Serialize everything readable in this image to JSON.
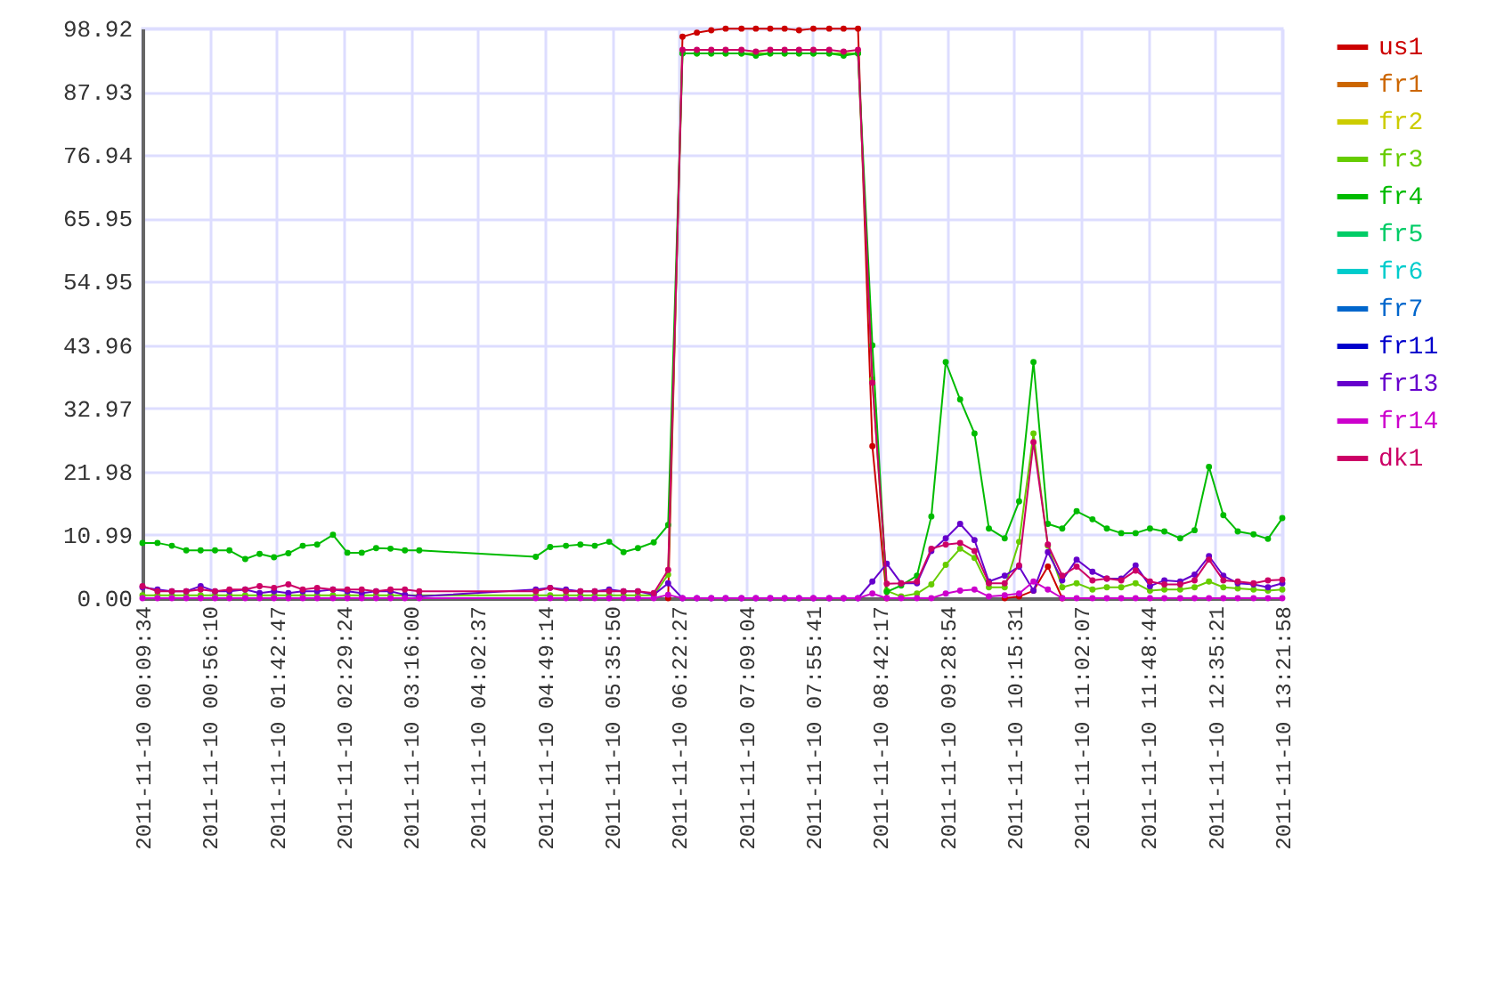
{
  "chart_data": {
    "type": "line",
    "marker": "circle",
    "grid": true,
    "legend": "top right",
    "x": [
      "2011-11-10T00:09:34",
      "2011-11-10T00:20",
      "2011-11-10T00:30",
      "2011-11-10T00:40",
      "2011-11-10T00:50",
      "2011-11-10T01:00",
      "2011-11-10T01:10",
      "2011-11-10T01:21",
      "2011-11-10T01:31",
      "2011-11-10T01:41",
      "2011-11-10T01:51",
      "2011-11-10T02:01",
      "2011-11-10T02:11",
      "2011-11-10T02:22",
      "2011-11-10T02:32",
      "2011-11-10T02:42",
      "2011-11-10T02:52",
      "2011-11-10T03:02",
      "2011-11-10T03:12",
      "2011-11-10T03:22",
      "2011-11-10T04:43",
      "2011-11-10T04:53",
      "2011-11-10T05:04",
      "2011-11-10T05:14",
      "2011-11-10T05:24",
      "2011-11-10T05:34",
      "2011-11-10T05:44",
      "2011-11-10T05:54",
      "2011-11-10T06:05",
      "2011-11-10T06:15",
      "2011-11-10T06:25",
      "2011-11-10T06:35",
      "2011-11-10T06:45",
      "2011-11-10T06:55",
      "2011-11-10T07:06",
      "2011-11-10T07:16",
      "2011-11-10T07:26",
      "2011-11-10T07:36",
      "2011-11-10T07:46",
      "2011-11-10T07:56",
      "2011-11-10T08:07",
      "2011-11-10T08:17",
      "2011-11-10T08:27",
      "2011-11-10T08:37",
      "2011-11-10T08:47",
      "2011-11-10T08:57",
      "2011-11-10T09:08",
      "2011-11-10T09:18",
      "2011-11-10T09:28",
      "2011-11-10T09:38",
      "2011-11-10T09:48",
      "2011-11-10T09:58",
      "2011-11-10T10:09",
      "2011-11-10T10:19",
      "2011-11-10T10:29",
      "2011-11-10T10:39",
      "2011-11-10T10:49",
      "2011-11-10T10:59",
      "2011-11-10T11:10",
      "2011-11-10T11:20",
      "2011-11-10T11:30",
      "2011-11-10T11:40",
      "2011-11-10T11:50",
      "2011-11-10T12:00",
      "2011-11-10T12:11",
      "2011-11-10T12:21",
      "2011-11-10T12:31",
      "2011-11-10T12:41",
      "2011-11-10T12:51",
      "2011-11-10T13:02",
      "2011-11-10T13:12",
      "2011-11-10T13:21:58"
    ],
    "xlim": [
      "2011-11-10T00:09:34",
      "2011-11-10T13:21:58"
    ],
    "xticks": [
      {
        "value": "2011-11-10T00:09:34",
        "label": "2011-11-10 00:09:34"
      },
      {
        "value": "2011-11-10T00:56:10",
        "label": "2011-11-10 00:56:10"
      },
      {
        "value": "2011-11-10T01:42:47",
        "label": "2011-11-10 01:42:47"
      },
      {
        "value": "2011-11-10T02:29:24",
        "label": "2011-11-10 02:29:24"
      },
      {
        "value": "2011-11-10T03:16:00",
        "label": "2011-11-10 03:16:00"
      },
      {
        "value": "2011-11-10T04:02:37",
        "label": "2011-11-10 04:02:37"
      },
      {
        "value": "2011-11-10T04:49:14",
        "label": "2011-11-10 04:49:14"
      },
      {
        "value": "2011-11-10T05:35:50",
        "label": "2011-11-10 05:35:50"
      },
      {
        "value": "2011-11-10T06:22:27",
        "label": "2011-11-10 06:22:27"
      },
      {
        "value": "2011-11-10T07:09:04",
        "label": "2011-11-10 07:09:04"
      },
      {
        "value": "2011-11-10T07:55:41",
        "label": "2011-11-10 07:55:41"
      },
      {
        "value": "2011-11-10T08:42:17",
        "label": "2011-11-10 08:42:17"
      },
      {
        "value": "2011-11-10T09:28:54",
        "label": "2011-11-10 09:28:54"
      },
      {
        "value": "2011-11-10T10:15:31",
        "label": "2011-11-10 10:15:31"
      },
      {
        "value": "2011-11-10T11:02:07",
        "label": "2011-11-10 11:02:07"
      },
      {
        "value": "2011-11-10T11:48:44",
        "label": "2011-11-10 11:48:44"
      },
      {
        "value": "2011-11-10T12:35:21",
        "label": "2011-11-10 12:35:21"
      },
      {
        "value": "2011-11-10T13:21:58",
        "label": "2011-11-10 13:21:58"
      }
    ],
    "ylim": [
      0,
      98.92
    ],
    "yticks": [
      {
        "value": 0,
        "label": "0.00"
      },
      10.99,
      21.98,
      32.97,
      43.96,
      54.95,
      65.95,
      76.94,
      87.93,
      98.92
    ],
    "series": [
      {
        "name": "us1",
        "color": "#cc0000",
        "values": [
          null,
          null,
          null,
          null,
          null,
          null,
          null,
          null,
          null,
          null,
          null,
          null,
          null,
          null,
          null,
          null,
          null,
          null,
          null,
          null,
          null,
          null,
          null,
          null,
          null,
          null,
          null,
          null,
          null,
          0,
          97.5,
          98.2,
          98.6,
          98.9,
          98.9,
          98.9,
          98.9,
          98.9,
          98.6,
          98.9,
          98.9,
          98.9,
          98.9,
          26.4,
          0,
          null,
          null,
          null,
          null,
          null,
          null,
          null,
          0,
          0.3,
          1.3,
          5.5,
          0,
          null,
          null,
          null,
          null,
          null,
          null,
          null,
          null,
          null,
          null,
          null,
          null,
          null,
          null,
          null
        ]
      },
      {
        "name": "fr1",
        "color": "#cc6600",
        "values": [
          null,
          null,
          null,
          null,
          null,
          null,
          null,
          null,
          null,
          null,
          null,
          null,
          null,
          null,
          null,
          null,
          null,
          null,
          null,
          null,
          null,
          null,
          null,
          null,
          null,
          null,
          null,
          null,
          null,
          null,
          null,
          null,
          null,
          null,
          null,
          null,
          null,
          null,
          null,
          null,
          null,
          null,
          null,
          null,
          null,
          null,
          null,
          null,
          null,
          null,
          null,
          null,
          null,
          null,
          null,
          null,
          null,
          null,
          null,
          null,
          null,
          null,
          null,
          null,
          null,
          null,
          null,
          null,
          null,
          null,
          null,
          null
        ]
      },
      {
        "name": "fr2",
        "color": "#cccc00",
        "values": [
          null,
          null,
          null,
          null,
          null,
          null,
          null,
          null,
          null,
          null,
          null,
          null,
          null,
          null,
          null,
          null,
          null,
          null,
          null,
          null,
          null,
          null,
          null,
          null,
          null,
          null,
          null,
          null,
          null,
          null,
          null,
          null,
          null,
          null,
          null,
          null,
          null,
          null,
          null,
          null,
          null,
          null,
          null,
          null,
          null,
          null,
          null,
          null,
          null,
          null,
          null,
          null,
          null,
          null,
          null,
          null,
          null,
          null,
          null,
          null,
          null,
          null,
          null,
          null,
          null,
          null,
          null,
          null,
          null,
          null,
          null,
          null
        ]
      },
      {
        "name": "fr3",
        "color": "#66cc00",
        "values": [
          0.5,
          0.5,
          0.5,
          0.5,
          0.5,
          0.5,
          0.5,
          0.5,
          0.5,
          0.5,
          0.5,
          0.5,
          0.5,
          0.5,
          0.5,
          0.5,
          0.5,
          0.5,
          0.5,
          0.5,
          0.5,
          0.5,
          0.5,
          0.5,
          0.5,
          0.5,
          0.5,
          0.5,
          0.5,
          4.1,
          94.6,
          94.6,
          94.6,
          94.6,
          94.6,
          94.6,
          94.6,
          94.6,
          94.6,
          94.6,
          94.6,
          94.6,
          94.6,
          38.0,
          1.3,
          0.3,
          0.8,
          2.4,
          5.8,
          8.6,
          7.0,
          1.9,
          1.9,
          9.8,
          28.6,
          9.1,
          1.9,
          2.6,
          1.5,
          1.9,
          1.9,
          2.6,
          1.3,
          1.5,
          1.5,
          1.9,
          2.9,
          1.9,
          1.7,
          1.5,
          1.3,
          1.5
        ]
      },
      {
        "name": "fr4",
        "color": "#00bb00",
        "values": [
          9.6,
          9.6,
          9.1,
          8.3,
          8.3,
          8.3,
          8.3,
          6.8,
          7.7,
          7.1,
          7.8,
          9.1,
          9.3,
          11.0,
          7.9,
          7.9,
          8.7,
          8.6,
          8.3,
          8.3,
          7.2,
          8.9,
          9.1,
          9.3,
          9.1,
          9.8,
          8.0,
          8.7,
          9.7,
          12.7,
          94.6,
          94.6,
          94.6,
          94.6,
          94.6,
          94.2,
          94.6,
          94.6,
          94.6,
          94.6,
          94.6,
          94.2,
          94.6,
          43.9,
          1.1,
          2.2,
          3.9,
          14.2,
          41.0,
          34.5,
          28.6,
          12.1,
          10.4,
          16.8,
          41.0,
          12.9,
          12.1,
          15.1,
          13.7,
          12.1,
          11.3,
          11.3,
          12.1,
          11.6,
          10.4,
          11.8,
          22.8,
          14.4,
          11.6,
          11.1,
          10.3,
          13.9
        ]
      },
      {
        "name": "fr5",
        "color": "#00cc66",
        "values": [
          null,
          null,
          null,
          null,
          null,
          null,
          null,
          null,
          null,
          null,
          null,
          null,
          null,
          null,
          null,
          null,
          null,
          null,
          null,
          null,
          null,
          null,
          null,
          null,
          null,
          null,
          null,
          null,
          null,
          null,
          null,
          null,
          null,
          null,
          null,
          null,
          null,
          null,
          null,
          null,
          null,
          null,
          null,
          null,
          null,
          null,
          null,
          null,
          null,
          null,
          null,
          null,
          null,
          null,
          null,
          null,
          null,
          null,
          null,
          null,
          null,
          null,
          null,
          null,
          null,
          null,
          null,
          null,
          null,
          null,
          null,
          null
        ]
      },
      {
        "name": "fr6",
        "color": "#00cccc",
        "values": [
          null,
          null,
          null,
          null,
          null,
          null,
          null,
          null,
          null,
          null,
          null,
          null,
          null,
          null,
          null,
          null,
          null,
          null,
          null,
          null,
          null,
          null,
          null,
          null,
          null,
          null,
          null,
          null,
          null,
          null,
          null,
          null,
          null,
          null,
          null,
          null,
          null,
          null,
          null,
          null,
          null,
          null,
          null,
          null,
          null,
          null,
          null,
          null,
          null,
          null,
          null,
          null,
          null,
          null,
          null,
          null,
          null,
          null,
          null,
          null,
          null,
          null,
          null,
          null,
          null,
          null,
          null,
          null,
          null,
          null,
          null,
          null
        ]
      },
      {
        "name": "fr7",
        "color": "#0066cc",
        "values": [
          null,
          null,
          null,
          null,
          null,
          null,
          null,
          null,
          null,
          null,
          null,
          null,
          null,
          null,
          null,
          null,
          null,
          null,
          null,
          null,
          null,
          null,
          null,
          null,
          null,
          null,
          null,
          null,
          null,
          null,
          null,
          null,
          null,
          null,
          null,
          null,
          null,
          null,
          null,
          null,
          null,
          null,
          null,
          null,
          null,
          null,
          null,
          null,
          null,
          null,
          null,
          null,
          null,
          null,
          null,
          null,
          null,
          null,
          null,
          null,
          null,
          null,
          null,
          null,
          null,
          null,
          null,
          null,
          null,
          null,
          null,
          null
        ]
      },
      {
        "name": "fr11",
        "color": "#0000cc",
        "values": [
          null,
          null,
          null,
          null,
          null,
          null,
          null,
          null,
          null,
          null,
          null,
          null,
          null,
          null,
          null,
          null,
          null,
          null,
          null,
          null,
          null,
          null,
          null,
          null,
          null,
          null,
          null,
          null,
          null,
          null,
          null,
          null,
          null,
          null,
          null,
          null,
          null,
          null,
          null,
          null,
          null,
          null,
          null,
          null,
          null,
          null,
          null,
          null,
          null,
          null,
          null,
          null,
          null,
          null,
          null,
          null,
          null,
          null,
          null,
          null,
          null,
          null,
          null,
          null,
          null,
          null,
          null,
          null,
          null,
          null,
          null,
          null
        ]
      },
      {
        "name": "fr13",
        "color": "#6600cc",
        "values": [
          1.9,
          1.5,
          1.2,
          1.2,
          2.1,
          1.2,
          1.2,
          1.5,
          0.9,
          1.2,
          0.9,
          1.2,
          1.2,
          1.5,
          1.2,
          0.9,
          1.2,
          1.2,
          0.6,
          0.3,
          1.5,
          1.8,
          1.5,
          1.2,
          1.2,
          1.5,
          1.2,
          1.2,
          0.6,
          2.6,
          0,
          0,
          0,
          0,
          0,
          0,
          0,
          0,
          0,
          0,
          0,
          0,
          0,
          2.9,
          6.0,
          2.6,
          2.6,
          8.2,
          10.4,
          12.9,
          10.1,
          2.9,
          3.9,
          5.5,
          1.3,
          8.0,
          3.1,
          6.7,
          4.6,
          3.4,
          3.4,
          5.7,
          2.1,
          3.1,
          2.9,
          4.1,
          7.3,
          3.9,
          2.6,
          2.4,
          1.9,
          2.6
        ]
      },
      {
        "name": "fr14",
        "color": "#cc00cc",
        "values": [
          0,
          0,
          0,
          0,
          0,
          0,
          0,
          0,
          0,
          0,
          0,
          0,
          0,
          0,
          0,
          0,
          0,
          0,
          0,
          0,
          0,
          0,
          0,
          0,
          0,
          0,
          0,
          0,
          0,
          0.6,
          0,
          0,
          0,
          0,
          0,
          0,
          0,
          0,
          0,
          0,
          0,
          0,
          0,
          0.8,
          0,
          0,
          0,
          0,
          0.8,
          1.3,
          1.5,
          0.3,
          0.5,
          0.8,
          2.9,
          1.5,
          0,
          0,
          0,
          0,
          0,
          0,
          0,
          0,
          0,
          0,
          0,
          0,
          0,
          0,
          0,
          0
        ]
      },
      {
        "name": "dk1",
        "color": "#cc0066",
        "values": [
          2.1,
          1.2,
          1.2,
          1.2,
          1.5,
          1.2,
          1.5,
          1.5,
          2.1,
          1.8,
          2.4,
          1.5,
          1.8,
          1.5,
          1.5,
          1.5,
          1.2,
          1.5,
          1.5,
          1.2,
          1.2,
          1.8,
          1.2,
          1.2,
          1.2,
          1.2,
          1.2,
          1.2,
          0.9,
          4.9,
          95.2,
          95.2,
          95.2,
          95.2,
          95.2,
          94.9,
          95.2,
          95.2,
          95.2,
          95.2,
          95.2,
          94.9,
          95.2,
          37.4,
          2.5,
          2.6,
          2.9,
          8.6,
          9.3,
          9.6,
          8.2,
          2.6,
          2.6,
          5.7,
          27.1,
          9.3,
          3.9,
          5.5,
          3.1,
          3.4,
          3.1,
          4.8,
          2.9,
          2.4,
          2.4,
          3.1,
          6.7,
          3.1,
          2.9,
          2.6,
          3.1,
          3.2
        ]
      }
    ]
  }
}
